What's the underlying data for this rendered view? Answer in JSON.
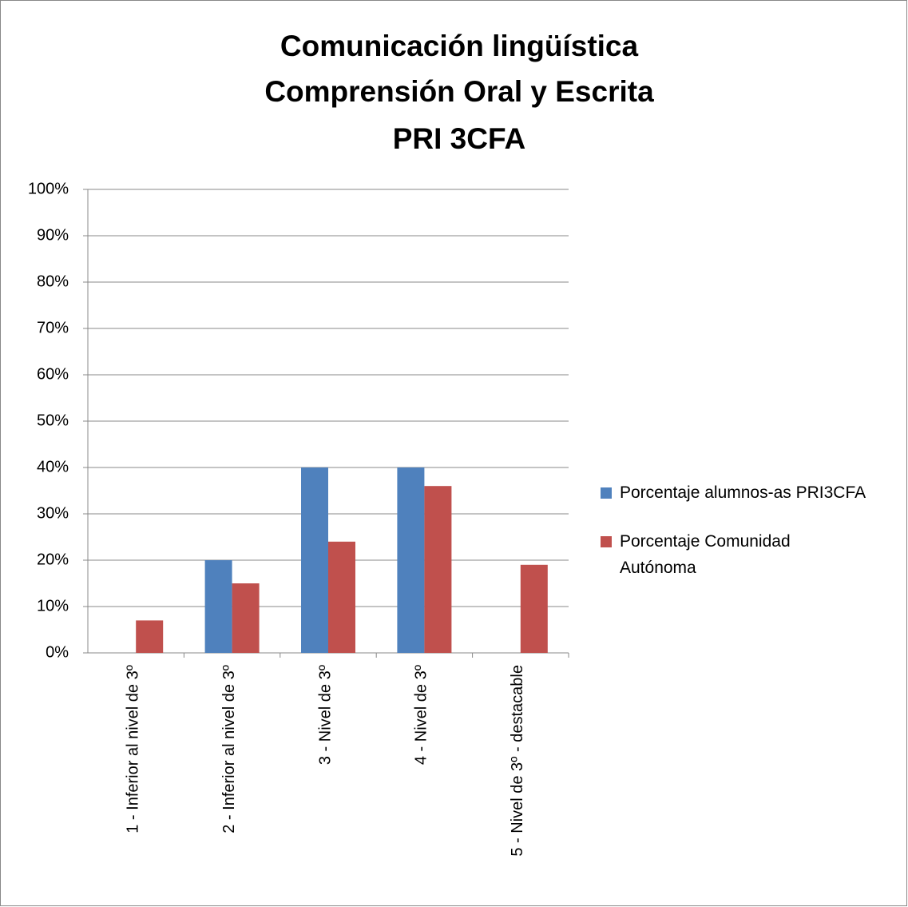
{
  "chart_data": {
    "type": "bar",
    "title": [
      "Comunicación lingüística",
      "Comprensión Oral y Escrita",
      "PRI 3CFA"
    ],
    "categories": [
      "1 - Inferior al nivel de 3º",
      "2 - Inferior al nivel de 3º",
      "3 - Nivel de 3º",
      "4 - Nivel de 3º",
      "5 - Nivel de 3º - destacable"
    ],
    "series": [
      {
        "name": "Porcentaje alumnos-as PRI3CFA",
        "color": "#4f81bd",
        "values": [
          0,
          20,
          40,
          40,
          0
        ]
      },
      {
        "name": "Porcentaje Comunidad Autónoma",
        "color": "#c0504d",
        "values": [
          7,
          15,
          24,
          36,
          19
        ]
      }
    ],
    "ylim": [
      0,
      100
    ],
    "yticks": [
      {
        "value": 0,
        "label": "0%"
      },
      {
        "value": 10,
        "label": "10%"
      },
      {
        "value": 20,
        "label": "20%"
      },
      {
        "value": 30,
        "label": "30%"
      },
      {
        "value": 40,
        "label": "40%"
      },
      {
        "value": 50,
        "label": "50%"
      },
      {
        "value": 60,
        "label": "60%"
      },
      {
        "value": 70,
        "label": "70%"
      },
      {
        "value": 80,
        "label": "80%"
      },
      {
        "value": 90,
        "label": "90%"
      },
      {
        "value": 100,
        "label": "100%"
      }
    ],
    "grid": true,
    "legend": "right"
  }
}
